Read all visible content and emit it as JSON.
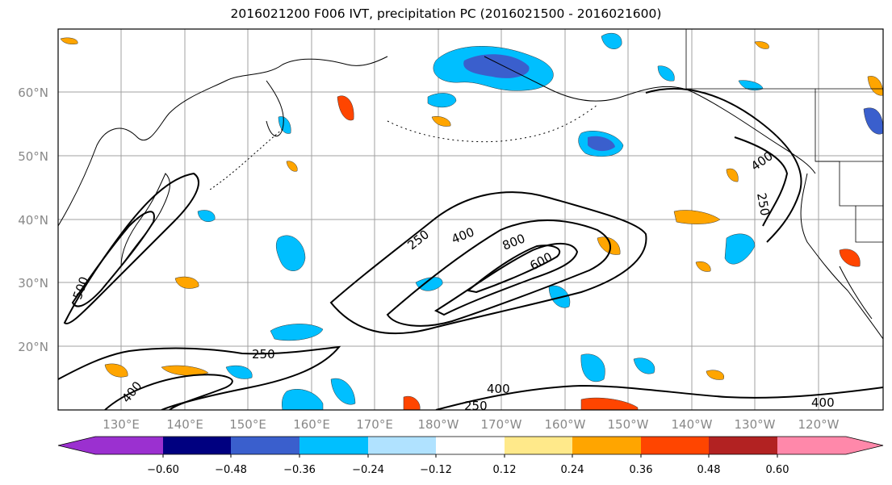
{
  "title": "2016021200 F006 IVT, precipitation PC (2016021500 - 2016021600)",
  "lat_labels": [
    "60°N",
    "50°N",
    "40°N",
    "30°N",
    "20°N"
  ],
  "lon_labels": [
    "130°E",
    "140°E",
    "150°E",
    "160°E",
    "170°E",
    "180°W",
    "170°W",
    "160°W",
    "150°W",
    "140°W",
    "130°W",
    "120°W"
  ],
  "contour_labels": [
    "250",
    "400",
    "800",
    "600",
    "400",
    "250",
    "250",
    "400",
    "400",
    "250",
    "500",
    "400"
  ],
  "colorbar": {
    "ticks": [
      "−0.60",
      "−0.48",
      "−0.36",
      "−0.24",
      "−0.12",
      "0.12",
      "0.24",
      "0.36",
      "0.48",
      "0.60"
    ],
    "colors": [
      "#9b30d0",
      "#000080",
      "#3a5fcd",
      "#00bfff",
      "#b0e2ff",
      "#ffffff",
      "#ffe98a",
      "#ffa500",
      "#ff4500",
      "#b22222",
      "#ff88aa"
    ]
  }
}
